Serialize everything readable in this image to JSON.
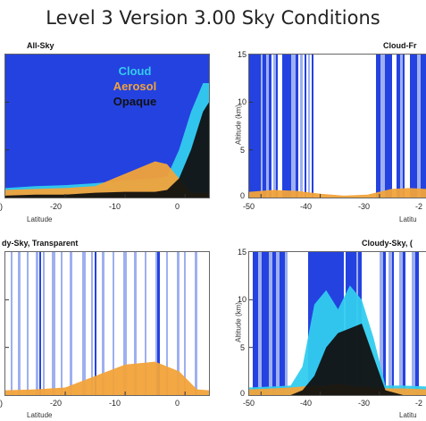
{
  "title": "Level 3 Version 3.00 Sky Conditions",
  "colors": {
    "cloud": "#33CCEE",
    "aerosol": "#F2A33A",
    "opaque": "#111111",
    "background": "#2442E0",
    "edge": "#9EB0F0"
  },
  "legend": {
    "cloud": "Cloud",
    "aerosol": "Aerosol",
    "opaque": "Opaque"
  },
  "chart_data": [
    {
      "type": "area",
      "title": "All-Sky",
      "xlabel": "Latitude",
      "ylabel": "",
      "xlim": [
        -30,
        4
      ],
      "ylim": [
        0,
        15
      ],
      "xticks": [
        "-20",
        "-10",
        "0"
      ],
      "yticks": [],
      "series": [
        {
          "name": "Cloud",
          "x": [
            -30,
            -25,
            -20,
            -15,
            -10,
            -5,
            -3,
            -1,
            1,
            3,
            4
          ],
          "values": [
            1.0,
            1.2,
            1.3,
            1.5,
            1.8,
            2.0,
            2.2,
            5.0,
            9.0,
            12.0,
            12.0
          ]
        },
        {
          "name": "Aerosol",
          "x": [
            -30,
            -25,
            -20,
            -15,
            -10,
            -5,
            -3,
            -1,
            1,
            3,
            4
          ],
          "values": [
            0.8,
            0.9,
            1.0,
            1.2,
            2.5,
            3.8,
            3.5,
            2.0,
            0.5,
            0.5,
            0.5
          ]
        },
        {
          "name": "Opaque",
          "x": [
            -30,
            -25,
            -20,
            -15,
            -10,
            -5,
            -3,
            -1,
            1,
            3,
            4
          ],
          "values": [
            0.2,
            0.3,
            0.3,
            0.5,
            0.6,
            0.6,
            0.8,
            2.0,
            5.0,
            9.0,
            10.0
          ]
        }
      ]
    },
    {
      "type": "area",
      "title": "Cloud-Fr",
      "xlabel": "Latitu",
      "ylabel": "Altitude (km)",
      "xlim": [
        -52,
        -22
      ],
      "ylim": [
        0,
        15
      ],
      "xticks": [
        "-50",
        "-40",
        "-30",
        "-2"
      ],
      "yticks": [
        "0",
        "5",
        "10",
        "15"
      ],
      "series": [
        {
          "name": "Aerosol",
          "x": [
            -52,
            -48,
            -44,
            -40,
            -36,
            -32,
            -28,
            -25,
            -22
          ],
          "values": [
            0.6,
            0.8,
            0.7,
            0.4,
            0.2,
            0.3,
            0.9,
            1.0,
            0.9
          ]
        }
      ]
    },
    {
      "type": "area",
      "title": "dy-Sky, Transparent",
      "xlabel": "Latitude",
      "ylabel": "",
      "xlim": [
        -30,
        4
      ],
      "ylim": [
        0,
        15
      ],
      "xticks": [
        "-20",
        "-10",
        "0"
      ],
      "yticks": [],
      "series": [
        {
          "name": "Aerosol",
          "x": [
            -30,
            -25,
            -20,
            -15,
            -10,
            -5,
            -1,
            2,
            4
          ],
          "values": [
            0.5,
            0.6,
            0.8,
            2.0,
            3.2,
            3.5,
            2.5,
            0.6,
            0.5
          ]
        }
      ]
    },
    {
      "type": "area",
      "title": "Cloudy-Sky, (",
      "xlabel": "Latitu",
      "ylabel": "Altitude (km)",
      "xlim": [
        -52,
        -22
      ],
      "ylim": [
        0,
        15
      ],
      "xticks": [
        "-50",
        "-40",
        "-30",
        "-2"
      ],
      "yticks": [
        "0",
        "5",
        "10",
        "15"
      ],
      "series": [
        {
          "name": "Cloud",
          "x": [
            -52,
            -48,
            -45,
            -43,
            -41,
            -39,
            -37,
            -35,
            -33,
            -31,
            -29,
            -26,
            -22
          ],
          "values": [
            0.8,
            0.9,
            1.0,
            3.0,
            9.5,
            11.0,
            9.0,
            11.5,
            10.0,
            6.0,
            1.0,
            1.0,
            0.9
          ]
        },
        {
          "name": "Aerosol",
          "x": [
            -52,
            -48,
            -45,
            -43,
            -41,
            -39,
            -37,
            -35,
            -33,
            -31,
            -29,
            -26,
            -22
          ],
          "values": [
            0.6,
            0.7,
            0.8,
            0.9,
            1.0,
            1.0,
            1.2,
            1.0,
            0.9,
            0.8,
            0.7,
            0.7,
            0.6
          ]
        },
        {
          "name": "Opaque",
          "x": [
            -52,
            -48,
            -45,
            -43,
            -41,
            -39,
            -37,
            -35,
            -33,
            -31,
            -29,
            -26,
            -22
          ],
          "values": [
            0.0,
            0.0,
            0.0,
            0.5,
            2.0,
            5.0,
            6.5,
            7.0,
            7.5,
            4.0,
            0.5,
            0.0,
            0.0
          ]
        }
      ]
    }
  ]
}
